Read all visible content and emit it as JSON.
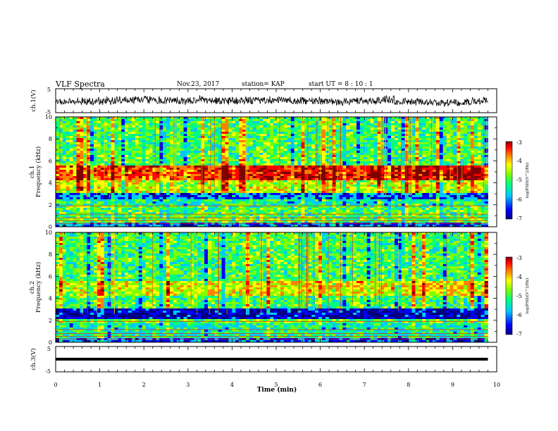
{
  "header": {
    "title": "VLF Spectra",
    "date": "Nov.23, 2017",
    "station": "station= KAP",
    "start_time": "start  UT =   8 : 10 : 1"
  },
  "chart_data": {
    "type": "heatmap",
    "xlabel": "Time (min)",
    "xlim": [
      0,
      10
    ],
    "x_ticks": [
      "0",
      "1",
      "2",
      "3",
      "4",
      "5",
      "6",
      "7",
      "8",
      "9",
      "10"
    ],
    "data_end_min": 9.8,
    "panels": [
      {
        "id": "ch1_wave",
        "type": "line",
        "ylabel": "ch.1(V)",
        "ylim": [
          -5,
          5
        ],
        "y_ticks": [
          "5",
          "-5"
        ],
        "amplitude_approx": 2.2
      },
      {
        "id": "ch1_spec",
        "type": "heatmap",
        "ylabel_lines": [
          "ch.1",
          "Frequency (kHz)"
        ],
        "ylim": [
          0,
          10
        ],
        "y_ticks": [
          "0",
          "2",
          "4",
          "6",
          "8",
          "10"
        ],
        "bands_khz": [
          {
            "from": 0,
            "to": 0.3,
            "level": "low"
          },
          {
            "from": 0.3,
            "to": 1.0,
            "level": "mixed"
          },
          {
            "from": 1.0,
            "to": 2.0,
            "level": "moderate"
          },
          {
            "from": 2.0,
            "to": 2.5,
            "level": "moderate-low"
          },
          {
            "from": 2.5,
            "to": 3.0,
            "level": "low"
          },
          {
            "from": 3.0,
            "to": 4.3,
            "level": "moderate-high"
          },
          {
            "from": 4.3,
            "to": 5.5,
            "level": "high"
          },
          {
            "from": 5.5,
            "to": 10.0,
            "level": "moderate"
          }
        ],
        "colorbar": {
          "label": "log(PSD)(V^2/Hz)",
          "range": [
            -7,
            -3
          ],
          "ticks": [
            "-3",
            "-4",
            "-5",
            "-6",
            "-7"
          ]
        }
      },
      {
        "id": "ch2_spec",
        "type": "heatmap",
        "ylabel_lines": [
          "ch.2",
          "Frequency (kHz)"
        ],
        "ylim": [
          0,
          10
        ],
        "y_ticks": [
          "0",
          "2",
          "4",
          "6",
          "8",
          "10"
        ],
        "bands_khz": [
          {
            "from": 0,
            "to": 0.3,
            "level": "low"
          },
          {
            "from": 0.3,
            "to": 1.8,
            "level": "moderate-low"
          },
          {
            "from": 1.8,
            "to": 2.2,
            "level": "mixed"
          },
          {
            "from": 2.2,
            "to": 3.0,
            "level": "very-low"
          },
          {
            "from": 3.0,
            "to": 4.2,
            "level": "moderate"
          },
          {
            "from": 4.2,
            "to": 5.5,
            "level": "moderate-high"
          },
          {
            "from": 5.5,
            "to": 10.0,
            "level": "moderate"
          }
        ],
        "colorbar": {
          "label": "log(PSD)(V^2/Hz)",
          "range": [
            -7,
            -3
          ],
          "ticks": [
            "-3",
            "-4",
            "-5",
            "-6",
            "-7"
          ]
        }
      },
      {
        "id": "ch3_wave",
        "type": "line",
        "ylabel": "ch.3(V)",
        "ylim": [
          -5,
          5
        ],
        "y_ticks": [
          "5",
          "-5"
        ],
        "constant_value": 0
      }
    ]
  },
  "colors": {
    "colormap": [
      "#000080",
      "#0000ff",
      "#00c8ff",
      "#00ff80",
      "#80ff00",
      "#ffff00",
      "#ff8000",
      "#ff0000",
      "#800000"
    ]
  }
}
